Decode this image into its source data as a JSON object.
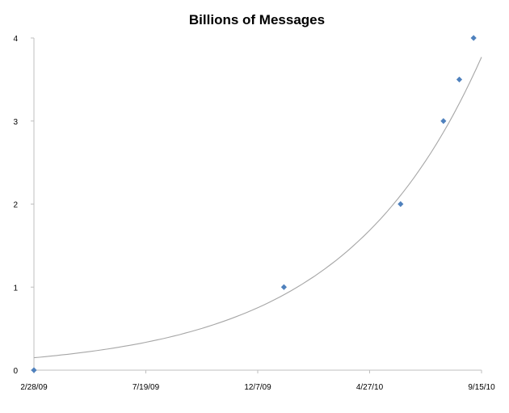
{
  "chart_data": {
    "type": "scatter",
    "title": "Billions of Messages",
    "xlabel": "",
    "ylabel": "",
    "x_ticks": [
      "2/28/09",
      "7/19/09",
      "12/7/09",
      "4/27/10",
      "9/15/10"
    ],
    "x_range": [
      "2009-02-28",
      "2010-09-15"
    ],
    "y_ticks": [
      "0",
      "1",
      "2",
      "3",
      "4"
    ],
    "ylim": [
      0,
      4
    ],
    "grid": false,
    "legend": "none",
    "marker_color": "#4f81bd",
    "trendline": {
      "type": "exponential",
      "color": "#a6a6a6",
      "start_value": 0.15,
      "end_value": 3.77
    },
    "points": [
      {
        "x": "2009-02-28",
        "y": 0
      },
      {
        "x": "2010-01-09",
        "y": 1
      },
      {
        "x": "2010-06-05",
        "y": 2
      },
      {
        "x": "2010-07-29",
        "y": 3
      },
      {
        "x": "2010-08-18",
        "y": 3.5
      },
      {
        "x": "2010-09-05",
        "y": 4
      }
    ]
  }
}
